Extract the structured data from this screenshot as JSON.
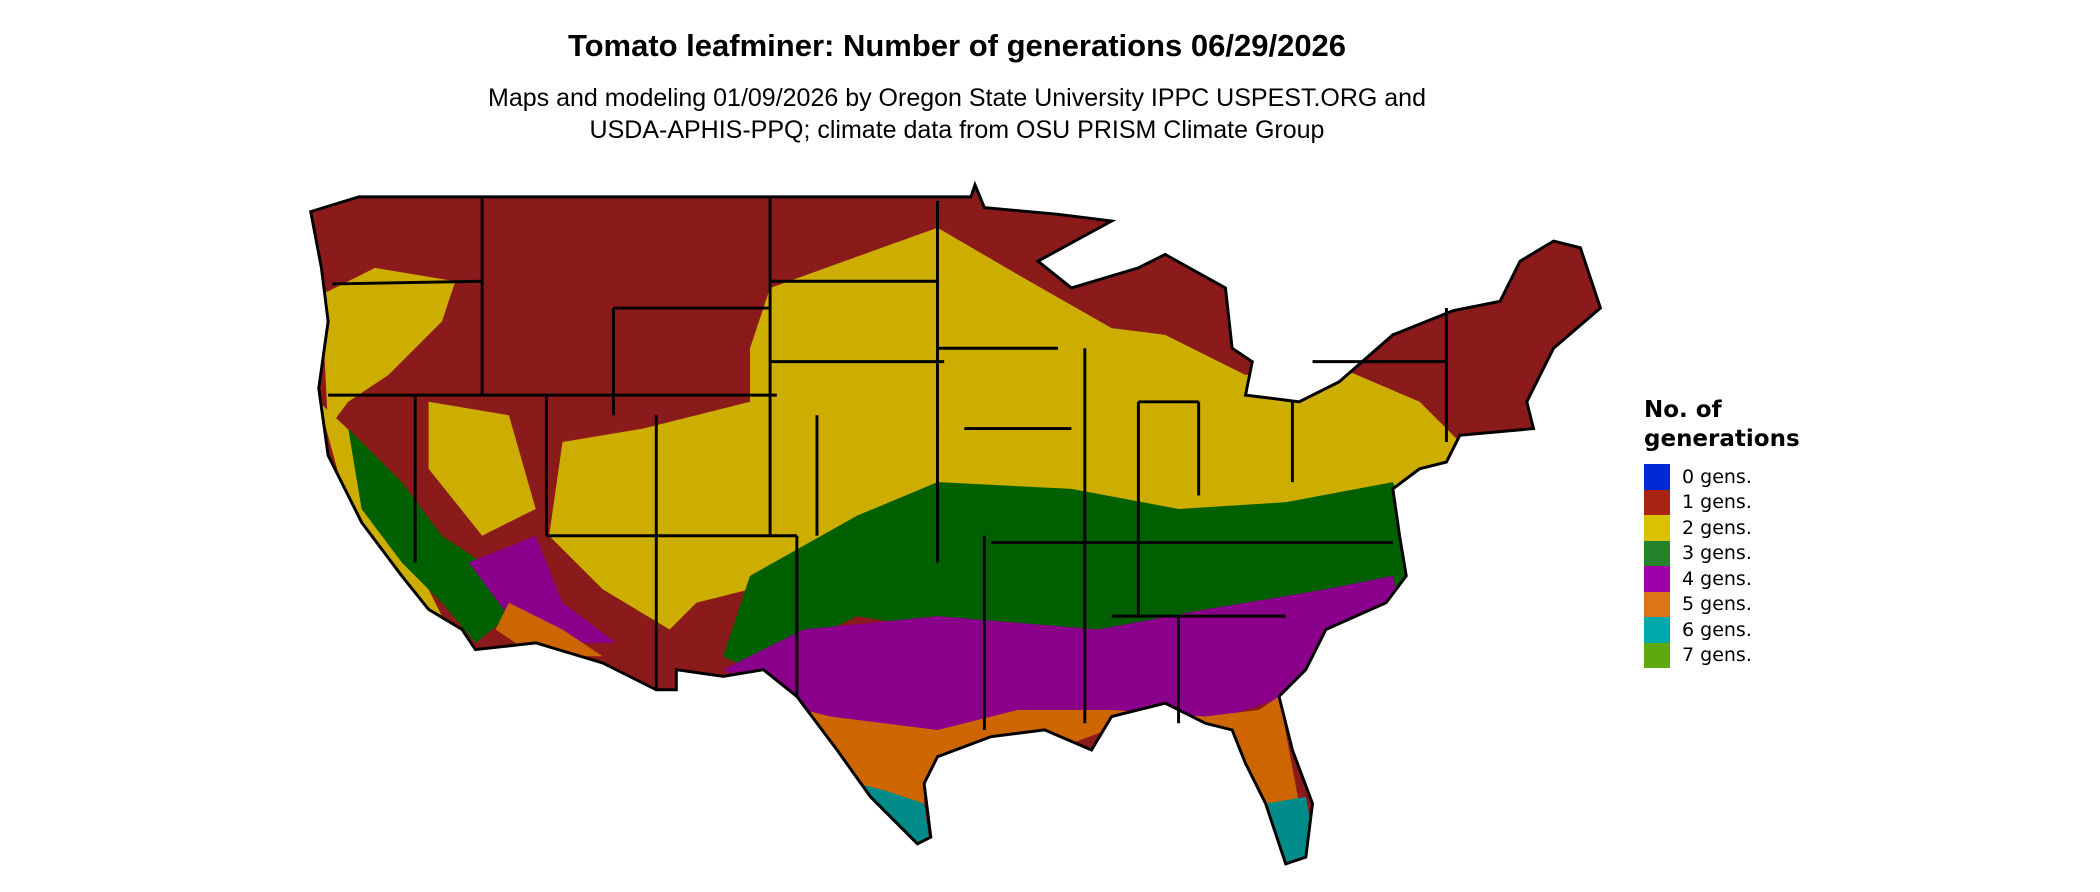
{
  "title": "Tomato leafminer: Number of generations 06/29/2026",
  "subtitle_line1": "Maps and modeling 01/09/2026 by Oregon State University IPPC USPEST.ORG and",
  "subtitle_line2": "USDA-APHIS-PPQ; climate data from OSU PRISM Climate Group",
  "legend": {
    "title_line1": "No. of",
    "title_line2": "generations",
    "items": [
      {
        "label": "0 gens.",
        "color": "#0029d6"
      },
      {
        "label": "1 gens.",
        "color": "#a82314"
      },
      {
        "label": "2 gens.",
        "color": "#d9c300"
      },
      {
        "label": "3 gens.",
        "color": "#24822a"
      },
      {
        "label": "4 gens.",
        "color": "#a000a8"
      },
      {
        "label": "5 gens.",
        "color": "#dd7516"
      },
      {
        "label": "6 gens.",
        "color": "#00a9a9"
      },
      {
        "label": "7 gens.",
        "color": "#5ea90e"
      }
    ]
  },
  "map_colors": {
    "1": "#8b1a1a",
    "2": "#ccad00",
    "3": "#006000",
    "4": "#8b008b",
    "5": "#cd6600",
    "6": "#008b8b"
  }
}
